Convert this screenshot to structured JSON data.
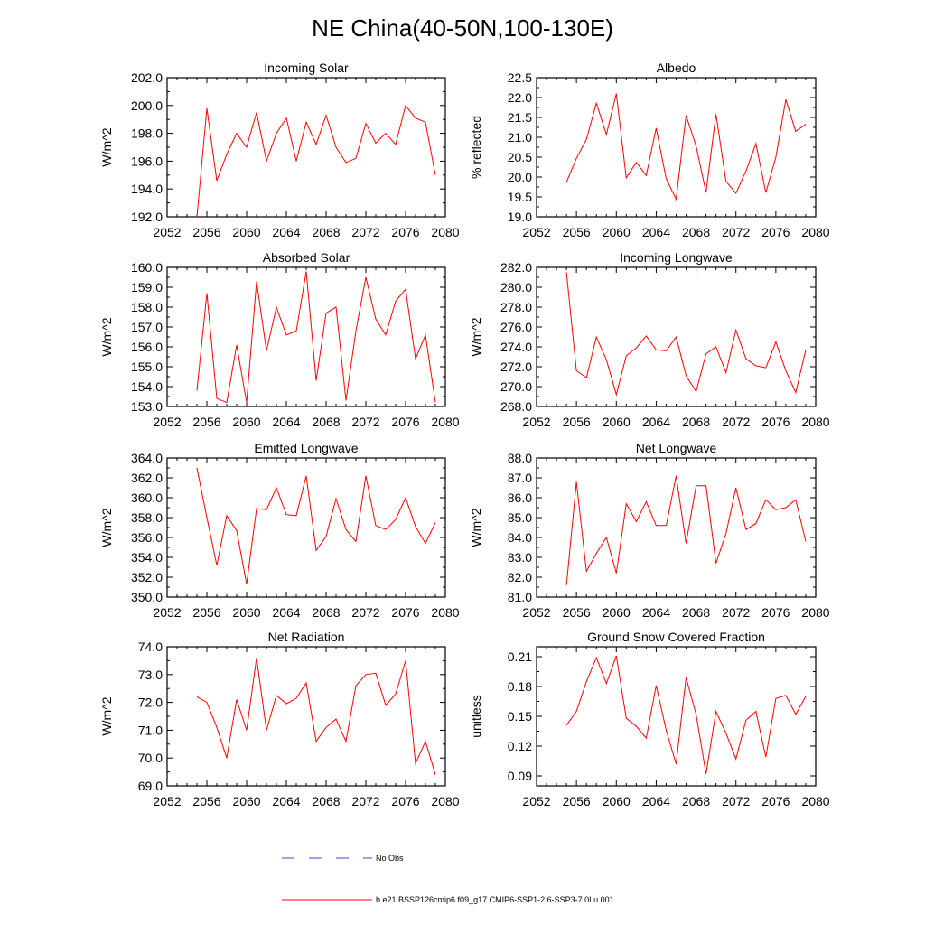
{
  "figure": {
    "title": "NE China(40-50N,100-130E)",
    "legend": [
      {
        "label": "No Obs",
        "color": "#3b4bd6",
        "style": "dashed"
      },
      {
        "label": "b.e21.BSSP126cmip6.f09_g17.CMIP6-SSP1-2.6-SSP3-7.0Lu.001",
        "color": "#ff0000",
        "style": "solid"
      }
    ]
  },
  "chart_data": [
    {
      "type": "line",
      "title": "Incoming Solar",
      "ylabel": "W/m^2",
      "xlim": [
        2052,
        2080
      ],
      "xticks": [
        "2052",
        "2056",
        "2060",
        "2064",
        "2068",
        "2072",
        "2076",
        "2080"
      ],
      "ylim": [
        192.0,
        202.0
      ],
      "yticks": [
        "192.0",
        "194.0",
        "196.0",
        "198.0",
        "200.0",
        "202.0"
      ],
      "x": [
        2055,
        2056,
        2057,
        2058,
        2059,
        2060,
        2061,
        2062,
        2063,
        2064,
        2065,
        2066,
        2067,
        2068,
        2069,
        2070,
        2071,
        2072,
        2073,
        2074,
        2075,
        2076,
        2077,
        2078,
        2079
      ],
      "series": [
        {
          "color": "#ff0000",
          "values": [
            192.0,
            199.8,
            194.6,
            196.5,
            198.0,
            197.0,
            199.5,
            196.0,
            198.0,
            199.1,
            196.0,
            198.8,
            197.2,
            199.3,
            197.0,
            195.9,
            196.2,
            198.7,
            197.3,
            198.0,
            197.2,
            200.0,
            199.1,
            198.8,
            195.0
          ]
        }
      ]
    },
    {
      "type": "line",
      "title": "Albedo",
      "ylabel": "% reflected",
      "xlim": [
        2052,
        2080
      ],
      "xticks": [
        "2052",
        "2056",
        "2060",
        "2064",
        "2068",
        "2072",
        "2076",
        "2080"
      ],
      "ylim": [
        19.0,
        22.5
      ],
      "yticks": [
        "19.0",
        "19.5",
        "20.0",
        "20.5",
        "21.0",
        "21.5",
        "22.0",
        "22.5"
      ],
      "x": [
        2055,
        2056,
        2057,
        2058,
        2059,
        2060,
        2061,
        2062,
        2063,
        2064,
        2065,
        2066,
        2067,
        2068,
        2069,
        2070,
        2071,
        2072,
        2073,
        2074,
        2075,
        2076,
        2077,
        2078,
        2079
      ],
      "series": [
        {
          "color": "#ff0000",
          "values": [
            19.87,
            20.47,
            20.95,
            21.86,
            21.07,
            22.1,
            19.98,
            20.37,
            20.04,
            21.23,
            19.96,
            19.44,
            21.55,
            20.78,
            19.61,
            21.58,
            19.89,
            19.59,
            20.15,
            20.84,
            19.61,
            20.5,
            21.95,
            21.15,
            21.33
          ]
        }
      ]
    },
    {
      "type": "line",
      "title": "Absorbed Solar",
      "ylabel": "W/m^2",
      "xlim": [
        2052,
        2080
      ],
      "xticks": [
        "2052",
        "2056",
        "2060",
        "2064",
        "2068",
        "2072",
        "2076",
        "2080"
      ],
      "ylim": [
        153.0,
        160.0
      ],
      "yticks": [
        "153.0",
        "154.0",
        "155.0",
        "156.0",
        "157.0",
        "158.0",
        "159.0",
        "160.0"
      ],
      "x": [
        2055,
        2056,
        2057,
        2058,
        2059,
        2060,
        2061,
        2062,
        2063,
        2064,
        2065,
        2066,
        2067,
        2068,
        2069,
        2070,
        2071,
        2072,
        2073,
        2074,
        2075,
        2076,
        2077,
        2078,
        2079
      ],
      "series": [
        {
          "color": "#ff0000",
          "values": [
            153.8,
            158.7,
            153.4,
            153.2,
            156.1,
            153.2,
            159.3,
            155.8,
            158.0,
            156.6,
            156.8,
            159.8,
            154.3,
            157.7,
            158.0,
            153.3,
            156.8,
            159.5,
            157.4,
            156.6,
            158.3,
            158.9,
            155.4,
            156.6,
            153.2
          ]
        }
      ]
    },
    {
      "type": "line",
      "title": "Incoming Longwave",
      "ylabel": "W/m^2",
      "xlim": [
        2052,
        2080
      ],
      "xticks": [
        "2052",
        "2056",
        "2060",
        "2064",
        "2068",
        "2072",
        "2076",
        "2080"
      ],
      "ylim": [
        268.0,
        282.0
      ],
      "yticks": [
        "268.0",
        "270.0",
        "272.0",
        "274.0",
        "276.0",
        "278.0",
        "280.0",
        "282.0"
      ],
      "x": [
        2055,
        2056,
        2057,
        2058,
        2059,
        2060,
        2061,
        2062,
        2063,
        2064,
        2065,
        2066,
        2067,
        2068,
        2069,
        2070,
        2071,
        2072,
        2073,
        2074,
        2075,
        2076,
        2077,
        2078,
        2079
      ],
      "series": [
        {
          "color": "#ff0000",
          "values": [
            281.5,
            271.6,
            270.9,
            275.0,
            272.7,
            269.2,
            273.1,
            273.9,
            275.1,
            273.7,
            273.6,
            275.0,
            271.1,
            269.5,
            273.3,
            274.0,
            271.4,
            275.7,
            272.8,
            272.1,
            271.9,
            274.5,
            271.6,
            269.4,
            273.7
          ]
        }
      ]
    },
    {
      "type": "line",
      "title": "Emitted Longwave",
      "ylabel": "W/m^2",
      "xlim": [
        2052,
        2080
      ],
      "xticks": [
        "2052",
        "2056",
        "2060",
        "2064",
        "2068",
        "2072",
        "2076",
        "2080"
      ],
      "ylim": [
        350.0,
        364.0
      ],
      "yticks": [
        "350.0",
        "352.0",
        "354.0",
        "356.0",
        "358.0",
        "360.0",
        "362.0",
        "364.0"
      ],
      "x": [
        2055,
        2056,
        2057,
        2058,
        2059,
        2060,
        2061,
        2062,
        2063,
        2064,
        2065,
        2066,
        2067,
        2068,
        2069,
        2070,
        2071,
        2072,
        2073,
        2074,
        2075,
        2076,
        2077,
        2078,
        2079
      ],
      "series": [
        {
          "color": "#ff0000",
          "values": [
            363.0,
            358.0,
            353.2,
            358.2,
            356.7,
            351.3,
            358.9,
            358.8,
            361.0,
            358.3,
            358.2,
            362.2,
            354.7,
            356.1,
            359.9,
            356.8,
            355.6,
            362.2,
            357.2,
            356.8,
            357.8,
            360.0,
            357.1,
            355.4,
            357.5
          ]
        }
      ]
    },
    {
      "type": "line",
      "title": "Net Longwave",
      "ylabel": "W/m^2",
      "xlim": [
        2052,
        2080
      ],
      "xticks": [
        "2052",
        "2056",
        "2060",
        "2064",
        "2068",
        "2072",
        "2076",
        "2080"
      ],
      "ylim": [
        81.0,
        88.0
      ],
      "yticks": [
        "81.0",
        "82.0",
        "83.0",
        "84.0",
        "85.0",
        "86.0",
        "87.0",
        "88.0"
      ],
      "x": [
        2055,
        2056,
        2057,
        2058,
        2059,
        2060,
        2061,
        2062,
        2063,
        2064,
        2065,
        2066,
        2067,
        2068,
        2069,
        2070,
        2071,
        2072,
        2073,
        2074,
        2075,
        2076,
        2077,
        2078,
        2079
      ],
      "series": [
        {
          "color": "#ff0000",
          "values": [
            81.6,
            86.8,
            82.3,
            83.2,
            84.0,
            82.2,
            85.7,
            84.8,
            85.8,
            84.6,
            84.6,
            87.1,
            83.7,
            86.6,
            86.6,
            82.7,
            84.2,
            86.5,
            84.4,
            84.7,
            85.9,
            85.4,
            85.5,
            85.9,
            83.8
          ]
        }
      ]
    },
    {
      "type": "line",
      "title": "Net Radiation",
      "ylabel": "W/m^2",
      "xlim": [
        2052,
        2080
      ],
      "xticks": [
        "2052",
        "2056",
        "2060",
        "2064",
        "2068",
        "2072",
        "2076",
        "2080"
      ],
      "ylim": [
        69.0,
        74.0
      ],
      "yticks": [
        "69.0",
        "70.0",
        "71.0",
        "72.0",
        "73.0",
        "74.0"
      ],
      "x": [
        2055,
        2056,
        2057,
        2058,
        2059,
        2060,
        2061,
        2062,
        2063,
        2064,
        2065,
        2066,
        2067,
        2068,
        2069,
        2070,
        2071,
        2072,
        2073,
        2074,
        2075,
        2076,
        2077,
        2078,
        2079
      ],
      "series": [
        {
          "color": "#ff0000",
          "values": [
            72.2,
            72.0,
            71.1,
            70.0,
            72.1,
            71.0,
            73.6,
            71.0,
            72.25,
            71.95,
            72.15,
            72.7,
            70.6,
            71.1,
            71.4,
            70.6,
            72.6,
            73.0,
            73.05,
            71.9,
            72.3,
            73.5,
            69.8,
            70.6,
            69.4
          ]
        }
      ]
    },
    {
      "type": "line",
      "title": "Ground Snow Covered Fraction",
      "ylabel": "unitless",
      "xlim": [
        2052,
        2080
      ],
      "xticks": [
        "2052",
        "2056",
        "2060",
        "2064",
        "2068",
        "2072",
        "2076",
        "2080"
      ],
      "ylim": [
        0.08,
        0.22
      ],
      "yticks": [
        "0.09",
        "0.12",
        "0.15",
        "0.18",
        "0.21"
      ],
      "ytick_values": [
        0.09,
        0.12,
        0.15,
        0.18,
        0.21
      ],
      "x": [
        2055,
        2056,
        2057,
        2058,
        2059,
        2060,
        2061,
        2062,
        2063,
        2064,
        2065,
        2066,
        2067,
        2068,
        2069,
        2070,
        2071,
        2072,
        2073,
        2074,
        2075,
        2076,
        2077,
        2078,
        2079
      ],
      "series": [
        {
          "color": "#ff0000",
          "values": [
            0.141,
            0.155,
            0.185,
            0.209,
            0.183,
            0.211,
            0.148,
            0.14,
            0.128,
            0.181,
            0.136,
            0.102,
            0.189,
            0.152,
            0.092,
            0.155,
            0.133,
            0.107,
            0.146,
            0.155,
            0.109,
            0.168,
            0.171,
            0.152,
            0.17
          ]
        }
      ]
    }
  ]
}
